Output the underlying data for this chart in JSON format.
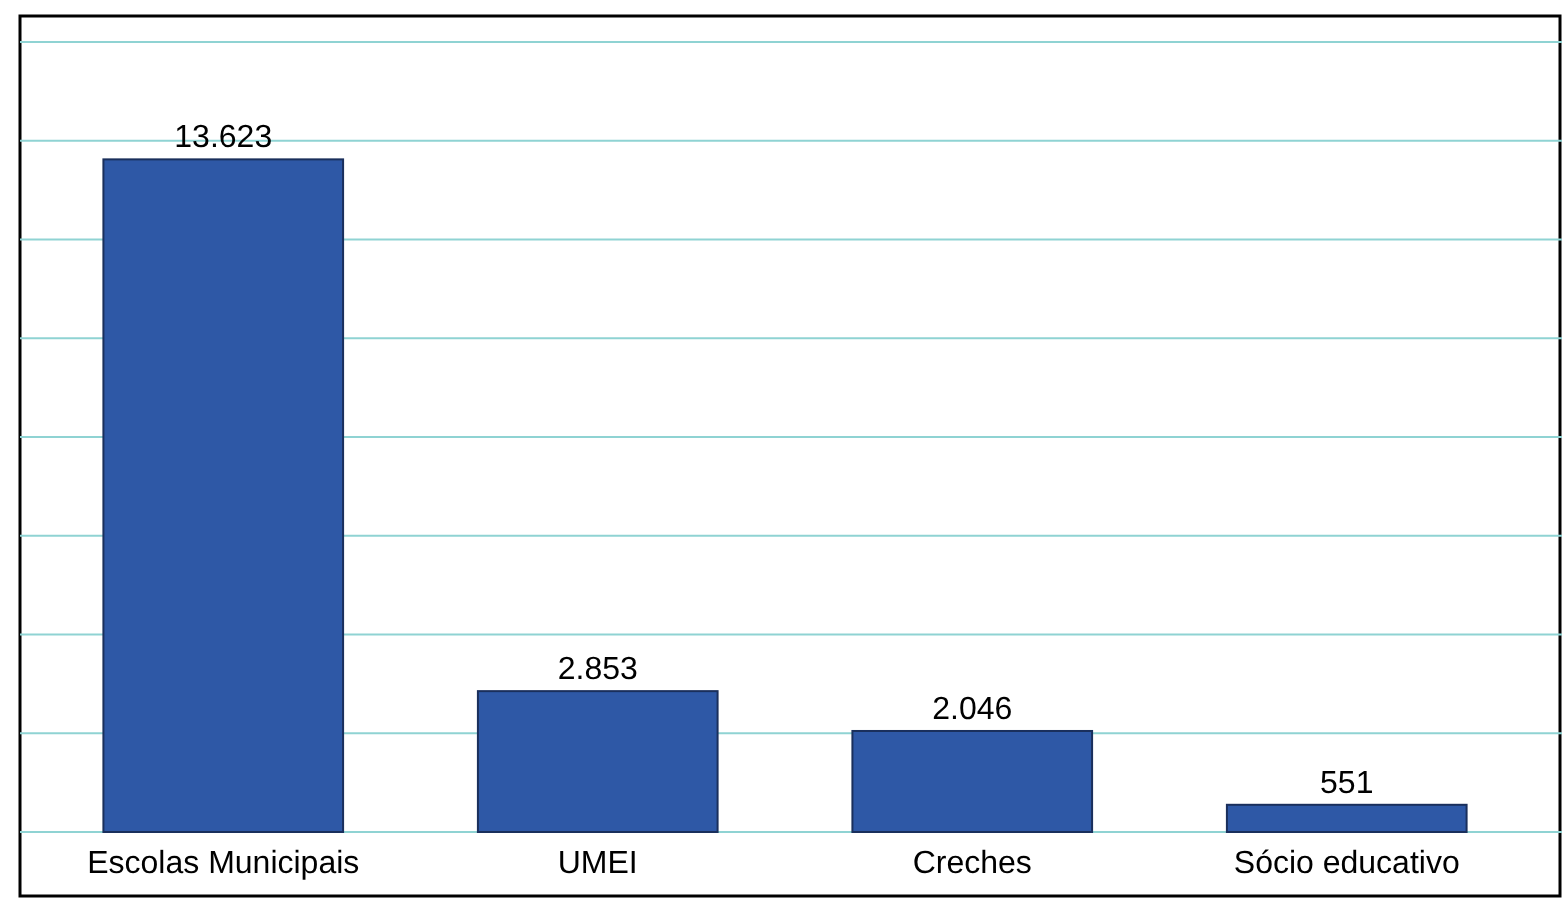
{
  "chart_data": {
    "type": "bar",
    "categories": [
      "Escolas Municipais",
      "UMEI",
      "Creches",
      "Sócio educativo"
    ],
    "values": [
      13623,
      2853,
      2046,
      551
    ],
    "value_labels": [
      "13.623",
      "2.853",
      "2.046",
      "551"
    ],
    "color": "#2e58a6",
    "ylim": [
      0,
      16000
    ],
    "yticks": [
      {
        "value": 0,
        "label": null
      },
      {
        "value": 2000,
        "label": null
      },
      {
        "value": 4000,
        "label": null
      },
      {
        "value": 6000,
        "label": null
      },
      {
        "value": 8000,
        "label": null
      },
      {
        "value": 10000,
        "label": null
      },
      {
        "value": 12000,
        "label": null
      },
      {
        "value": 14000,
        "label": null
      },
      {
        "value": 16000,
        "label": null
      }
    ],
    "tick_labels": "x",
    "grid": "y"
  }
}
